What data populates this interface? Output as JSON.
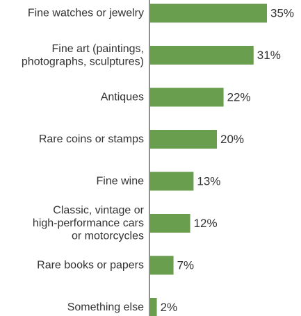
{
  "chart_data": {
    "type": "bar",
    "orientation": "horizontal",
    "title": "",
    "xlabel": "",
    "ylabel": "",
    "value_suffix": "%",
    "xlim": [
      0,
      35
    ],
    "grid": false,
    "legend": "none",
    "bar_color": "#6a9e4f",
    "categories": [
      [
        "Fine watches or jewelry"
      ],
      [
        "Fine art (paintings,",
        "photographs, sculptures)"
      ],
      [
        "Antiques"
      ],
      [
        "Rare coins or stamps"
      ],
      [
        "Fine wine"
      ],
      [
        "Classic, vintage or",
        "high-performance cars",
        "or motorcycles"
      ],
      [
        "Rare books or papers"
      ],
      [
        "Something else"
      ]
    ],
    "values": [
      35,
      31,
      22,
      20,
      13,
      12,
      7,
      2
    ]
  }
}
